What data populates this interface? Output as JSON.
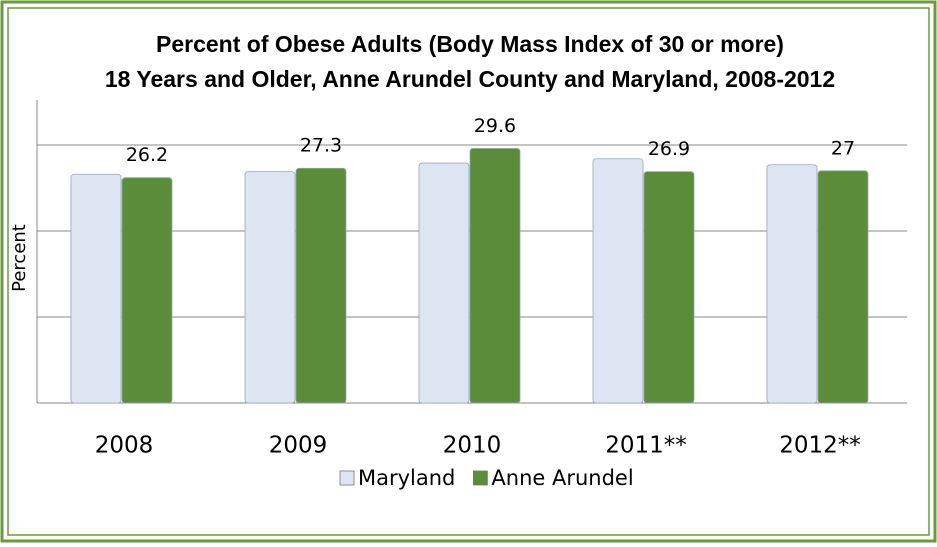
{
  "chart_data": {
    "type": "bar",
    "title": "Percent of Obese Adults (Body Mass Index of 30 or more)",
    "subtitle": "18 Years and Older, Anne Arundel County and Maryland, 2008-2012",
    "y_label": "Percent",
    "categories": [
      "2008",
      "2009",
      "2010",
      "2011**",
      "2012**"
    ],
    "series": [
      {
        "name": "Maryland",
        "color": "#dde5f3",
        "values": [
          26.6,
          26.9,
          27.9,
          28.4,
          27.7
        ],
        "labels": false
      },
      {
        "name": "Anne Arundel",
        "color": "#5b8c3a",
        "values": [
          26.2,
          27.3,
          29.6,
          26.9,
          27
        ],
        "labels": true
      }
    ],
    "ylim": [
      0,
      35
    ],
    "yticks": [
      0,
      10,
      20,
      30
    ],
    "grid": true
  }
}
